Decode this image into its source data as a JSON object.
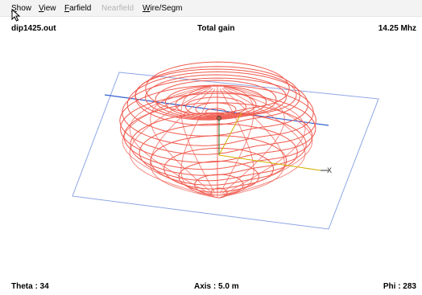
{
  "menu": {
    "show": {
      "lead": "S",
      "rest": "how"
    },
    "view": {
      "lead": "V",
      "rest": "iew"
    },
    "farfield": {
      "lead": "F",
      "rest": "arfield"
    },
    "nearfield": {
      "text": "Nearfield"
    },
    "wire_segm": {
      "lead": "W",
      "rest": "ire/Segm"
    }
  },
  "header": {
    "filename": "dip1425.out",
    "title": "Total gain",
    "frequency": "14.25 Mhz"
  },
  "footer": {
    "theta": "Theta : 34",
    "axis": "Axis : 5.0 m",
    "phi": "Phi : 283"
  },
  "plot": {
    "pattern_color": "#f05a4e",
    "plane_color": "#8ea6e6",
    "axis_color": "#2f5fd0",
    "z_axis_color": "#2d7a2d",
    "x_axis_color": "#d1b000",
    "axis_labels": [
      "X"
    ]
  }
}
